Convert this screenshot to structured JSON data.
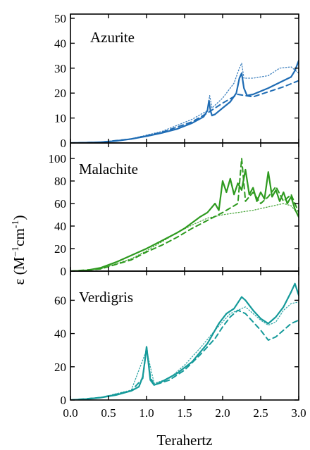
{
  "chart_data": [
    {
      "type": "line",
      "title": "Azurite",
      "color": "#1f6cb4",
      "ylim": [
        0,
        50
      ],
      "yticks": [
        0,
        10,
        20,
        30,
        40,
        50
      ],
      "xlim": [
        0,
        3
      ],
      "series": [
        {
          "style": "solid",
          "x": [
            0,
            0.2,
            0.4,
            0.6,
            0.8,
            1.0,
            1.2,
            1.4,
            1.6,
            1.75,
            1.8,
            1.82,
            1.84,
            1.86,
            1.9,
            2.0,
            2.1,
            2.18,
            2.22,
            2.25,
            2.28,
            2.32,
            2.4,
            2.6,
            2.8,
            2.9,
            2.95,
            3.0
          ],
          "y": [
            0,
            0.1,
            0.3,
            0.8,
            1.6,
            2.7,
            4.0,
            5.6,
            8.0,
            10.5,
            13,
            17,
            13,
            11,
            11.5,
            14,
            16.5,
            20,
            26,
            28,
            22,
            19,
            19.5,
            22,
            25,
            26.5,
            29,
            33
          ]
        },
        {
          "style": "dashed",
          "x": [
            0,
            0.4,
            0.8,
            1.2,
            1.6,
            1.8,
            2.0,
            2.2,
            2.4,
            2.6,
            2.8,
            3.0
          ],
          "y": [
            0,
            0.3,
            1.6,
            4.2,
            8.5,
            12,
            16,
            19.5,
            18.5,
            20.5,
            22.5,
            25
          ]
        },
        {
          "style": "dotted",
          "x": [
            0,
            0.4,
            0.8,
            1.2,
            1.6,
            1.8,
            1.83,
            1.86,
            2.0,
            2.15,
            2.22,
            2.25,
            2.28,
            2.4,
            2.6,
            2.75,
            2.9,
            3.0
          ],
          "y": [
            0,
            0.3,
            1.7,
            4.6,
            9.5,
            13,
            19,
            14,
            18,
            24,
            30,
            32,
            26,
            26,
            27,
            30,
            30.5,
            28
          ]
        }
      ]
    },
    {
      "type": "line",
      "title": "Malachite",
      "color": "#2e9a1f",
      "ylim": [
        0,
        110
      ],
      "yticks": [
        0,
        20,
        40,
        60,
        80,
        100
      ],
      "xlim": [
        0,
        3
      ],
      "series": [
        {
          "style": "solid",
          "x": [
            0,
            0.2,
            0.4,
            0.6,
            0.8,
            1.0,
            1.2,
            1.4,
            1.5,
            1.6,
            1.7,
            1.8,
            1.85,
            1.9,
            1.95,
            2.0,
            2.05,
            2.1,
            2.15,
            2.2,
            2.25,
            2.3,
            2.35,
            2.4,
            2.45,
            2.5,
            2.55,
            2.6,
            2.65,
            2.7,
            2.75,
            2.8,
            2.85,
            2.9,
            2.95,
            3.0
          ],
          "y": [
            0,
            0.5,
            3,
            8,
            14,
            20,
            27,
            34,
            38,
            43,
            48,
            52,
            56,
            60,
            54,
            80,
            70,
            82,
            68,
            78,
            72,
            90,
            68,
            74,
            62,
            70,
            64,
            88,
            66,
            72,
            62,
            70,
            60,
            66,
            55,
            48
          ]
        },
        {
          "style": "dashed",
          "x": [
            0,
            0.4,
            0.8,
            1.0,
            1.2,
            1.4,
            1.6,
            1.8,
            2.0,
            2.1,
            2.2,
            2.25,
            2.3,
            2.4,
            2.5,
            2.6,
            2.7,
            2.8,
            2.9,
            3.0
          ],
          "y": [
            0,
            2,
            10,
            17,
            23,
            30,
            38,
            45,
            52,
            56,
            60,
            100,
            62,
            70,
            60,
            66,
            75,
            62,
            68,
            52
          ]
        },
        {
          "style": "dotted",
          "x": [
            0,
            0.4,
            0.8,
            1.0,
            1.2,
            1.4,
            1.6,
            1.8,
            2.0,
            2.2,
            2.4,
            2.6,
            2.8,
            2.9,
            3.0
          ],
          "y": [
            0,
            2,
            11,
            18,
            26,
            34,
            41,
            47,
            50,
            52,
            54,
            57,
            60,
            58,
            50
          ]
        }
      ]
    },
    {
      "type": "line",
      "title": "Verdigris",
      "color": "#159a9a",
      "ylim": [
        0,
        75
      ],
      "yticks": [
        0,
        20,
        40,
        60
      ],
      "xlim": [
        0,
        3
      ],
      "xticks": [
        "0.0",
        "0.5",
        "1.0",
        "1.5",
        "2.0",
        "2.5",
        "3.0"
      ],
      "xlabel": "Terahertz",
      "series": [
        {
          "style": "solid",
          "x": [
            0,
            0.2,
            0.4,
            0.6,
            0.8,
            0.9,
            0.95,
            0.98,
            1.0,
            1.02,
            1.05,
            1.1,
            1.2,
            1.4,
            1.6,
            1.8,
            1.95,
            2.05,
            2.15,
            2.25,
            2.3,
            2.4,
            2.5,
            2.6,
            2.7,
            2.8,
            2.9,
            2.95,
            3.0
          ],
          "y": [
            0,
            0.5,
            1.5,
            3,
            5.5,
            8,
            14,
            24,
            32,
            24,
            12,
            9,
            11,
            16,
            23,
            34,
            46,
            52,
            55,
            62,
            60,
            54,
            49,
            46,
            50,
            56,
            65,
            70,
            63
          ]
        },
        {
          "style": "dashed",
          "x": [
            0,
            0.4,
            0.8,
            0.95,
            1.0,
            1.05,
            1.1,
            1.3,
            1.5,
            1.7,
            1.9,
            2.0,
            2.1,
            2.2,
            2.3,
            2.4,
            2.5,
            2.6,
            2.7,
            2.8,
            2.9,
            3.0
          ],
          "y": [
            0,
            1.5,
            5.5,
            13,
            32,
            14,
            9,
            12,
            18,
            27,
            37,
            44,
            50,
            54,
            52,
            47,
            42,
            36,
            38,
            42,
            46,
            48
          ]
        },
        {
          "style": "dotted",
          "x": [
            0,
            0.4,
            0.8,
            1.0,
            1.1,
            1.3,
            1.5,
            1.7,
            1.9,
            2.1,
            2.3,
            2.5,
            2.6,
            2.7,
            2.8,
            2.9,
            3.0
          ],
          "y": [
            0,
            1.5,
            6,
            30,
            10,
            13,
            21,
            31,
            42,
            52,
            56,
            48,
            45,
            47,
            54,
            58,
            59
          ]
        }
      ]
    }
  ],
  "ylabel_main": "ε (M",
  "ylabel_sup1": "−1",
  "ylabel_mid": "cm",
  "ylabel_sup2": "-1",
  "ylabel_end": ")"
}
